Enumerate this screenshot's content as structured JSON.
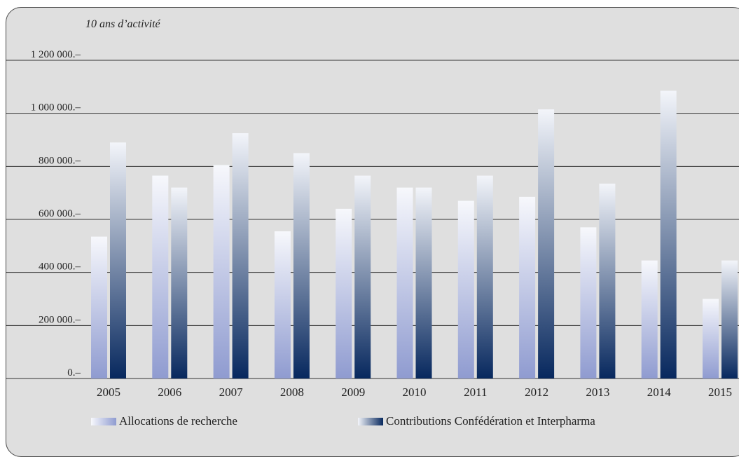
{
  "colors": {
    "allocations_top": "#f7f8fc",
    "allocations_bottom": "#8f9bd0",
    "contributions_top": "#f3f5fa",
    "contributions_bottom": "#07285e",
    "gridline": "#333333",
    "background": "#dfdfdf"
  },
  "chart_data": {
    "type": "bar",
    "title": "10 ans d’activité",
    "xlabel": "",
    "ylabel": "",
    "ylim": [
      0,
      1200000
    ],
    "y_ticks": [
      0,
      200000,
      400000,
      600000,
      800000,
      1000000,
      1200000
    ],
    "y_tick_labels": [
      "0.–",
      "200 000.–",
      "400 000.–",
      "600 000.–",
      "800 000.–",
      "1 000 000.–",
      "1 200 000.–"
    ],
    "grid": true,
    "legend_position": "bottom",
    "categories": [
      "2005",
      "2006",
      "2007",
      "2008",
      "2009",
      "2010",
      "2011",
      "2012",
      "2013",
      "2014",
      "2015"
    ],
    "series": [
      {
        "name": "Allocations de recherche",
        "values": [
          535000,
          765000,
          805000,
          555000,
          640000,
          720000,
          670000,
          685000,
          570000,
          445000,
          300000
        ]
      },
      {
        "name": "Contributions Confédération et Interpharma",
        "values": [
          890000,
          720000,
          925000,
          850000,
          765000,
          720000,
          765000,
          1015000,
          735000,
          1085000,
          445000
        ]
      }
    ]
  }
}
